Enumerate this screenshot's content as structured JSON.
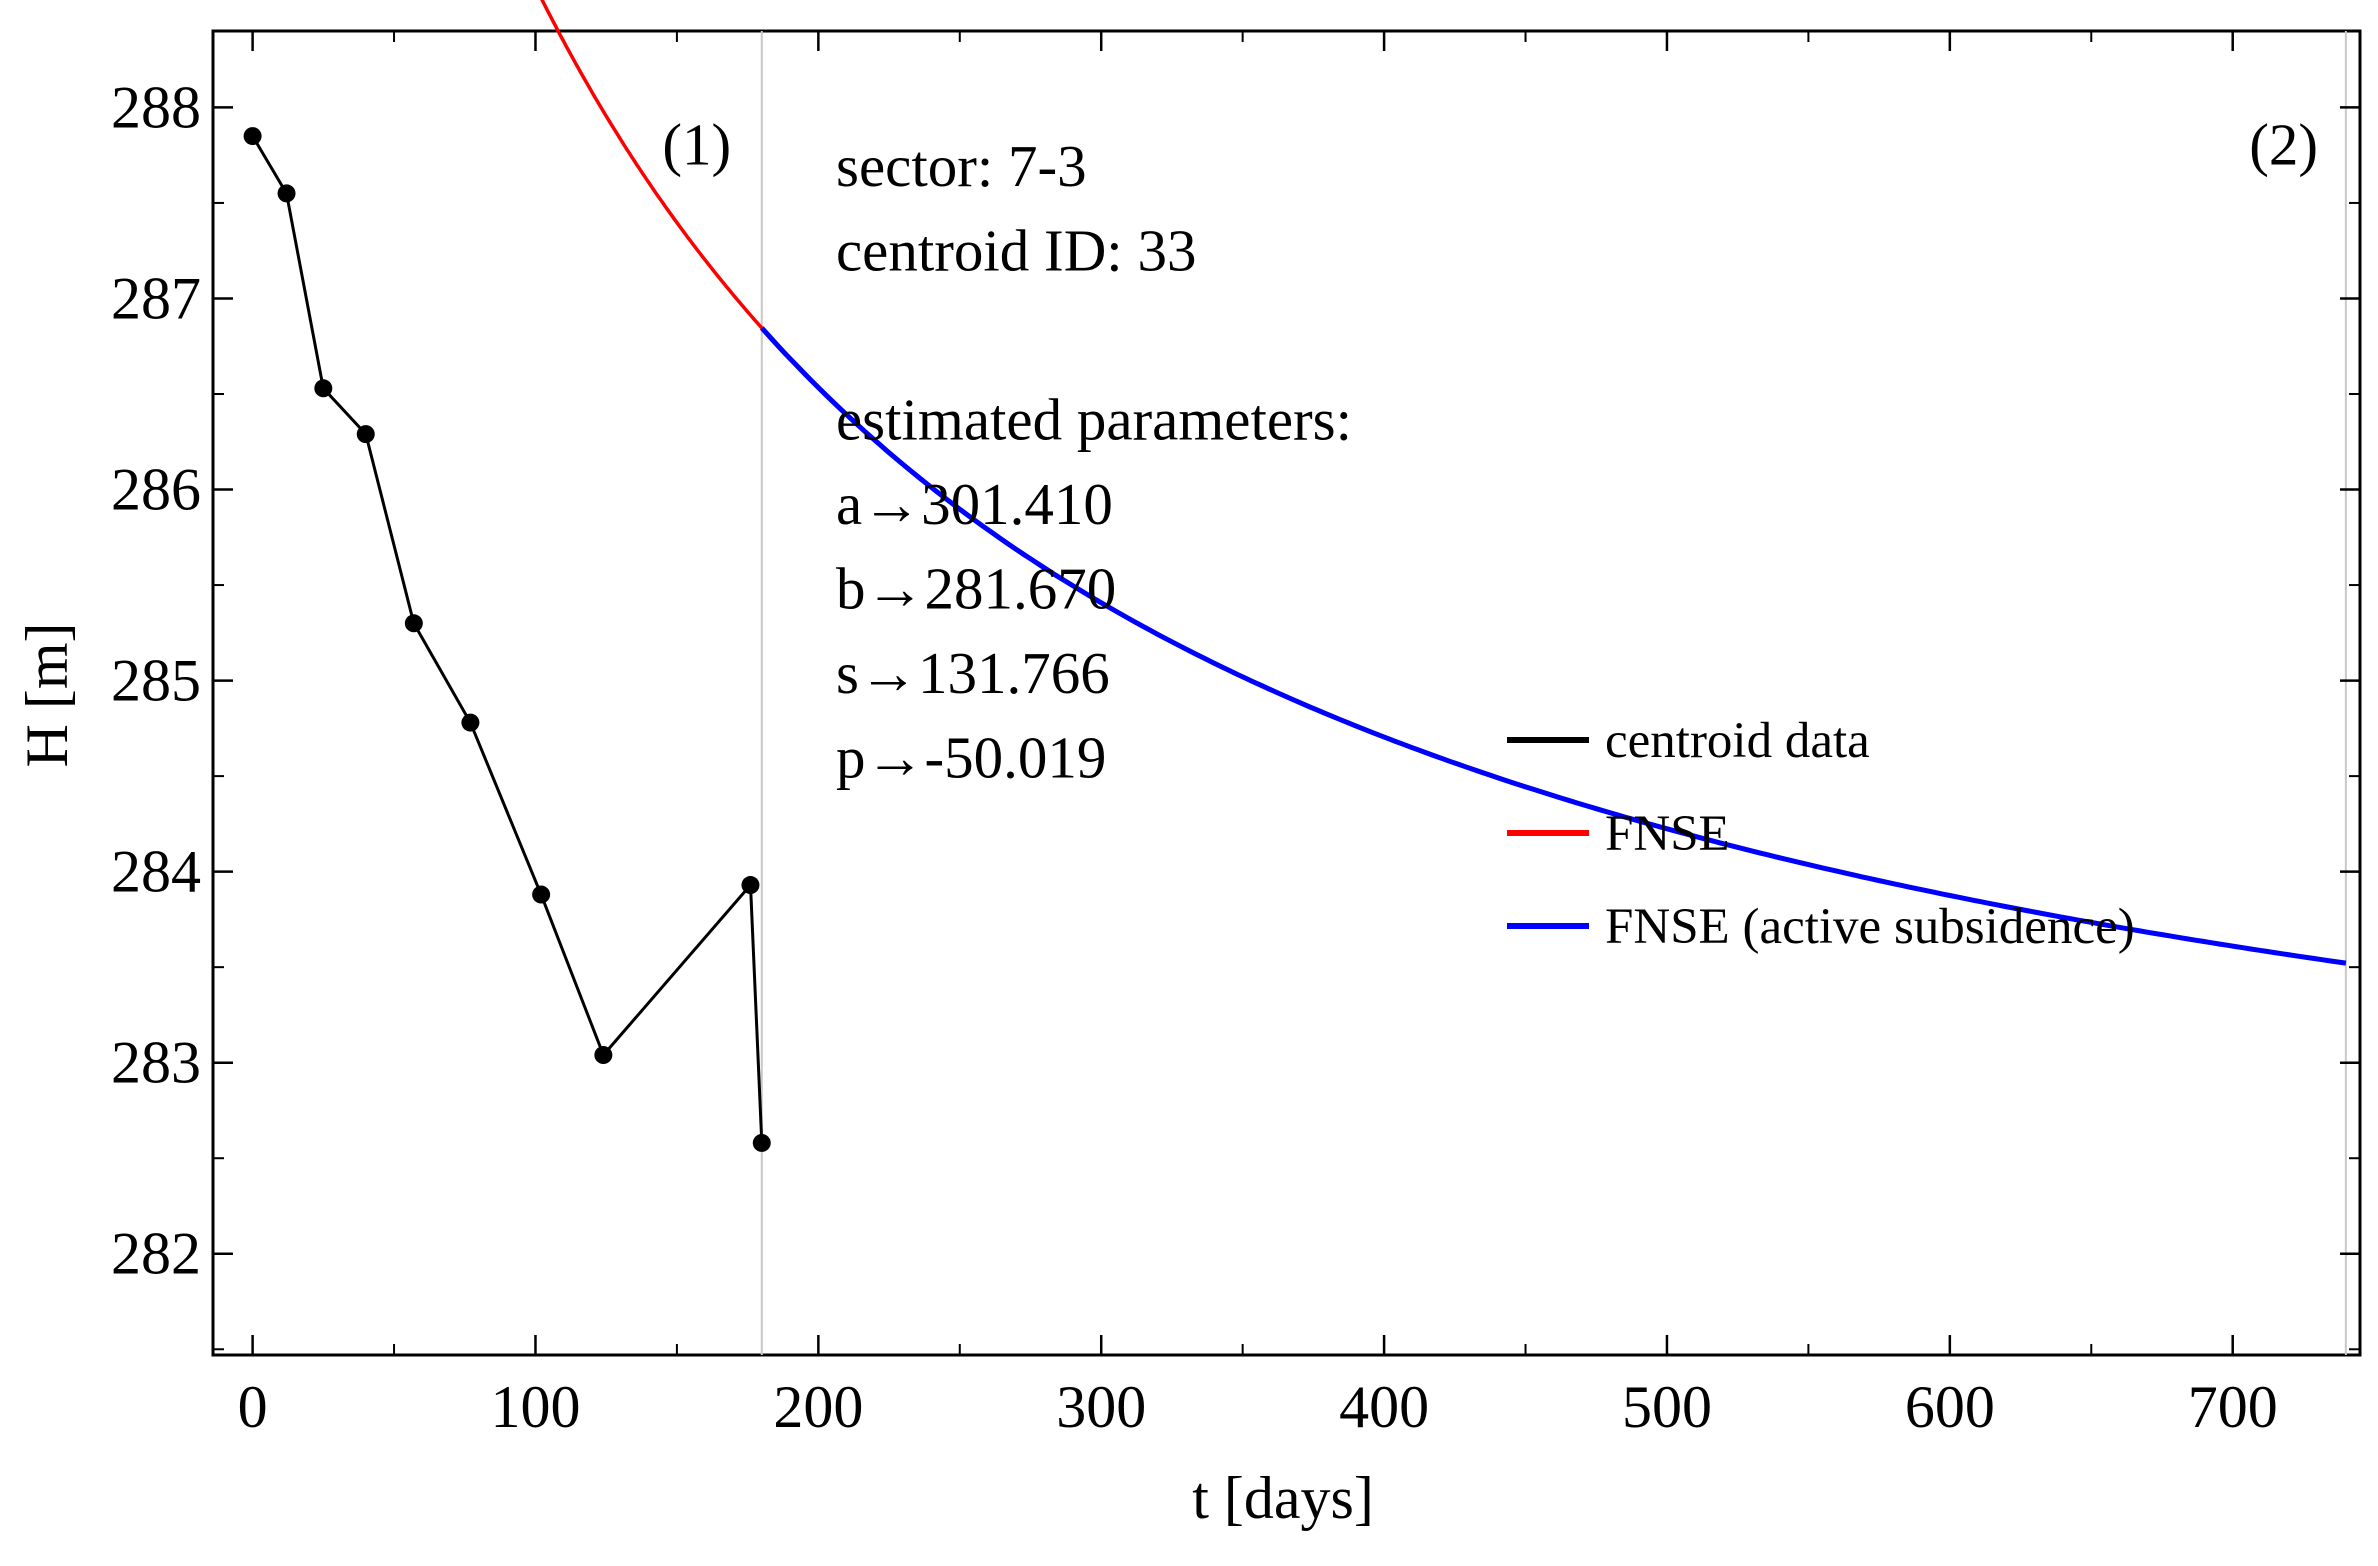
{
  "chart_data": {
    "type": "line",
    "xlabel": "t [days]",
    "ylabel": "H [m]",
    "xlim": [
      -14,
      745
    ],
    "ylim": [
      281.47,
      288.4
    ],
    "xticks": [
      0,
      100,
      200,
      300,
      400,
      500,
      600,
      700
    ],
    "yticks": [
      282,
      283,
      284,
      285,
      286,
      287,
      288
    ],
    "grid": false,
    "vlines": [
      180,
      740
    ],
    "region_labels": [
      {
        "text": "(1)",
        "x": 157,
        "y": 287.7
      },
      {
        "text": "(2)",
        "x": 718,
        "y": 287.7
      }
    ],
    "annotation_lines": [
      "sector: 7-3",
      "centroid ID: 33",
      "",
      "estimated parameters:",
      "a→301.410",
      "b→281.670",
      "s→131.766",
      "p→-50.019"
    ],
    "legend_position": "center-right",
    "series": [
      {
        "name": "centroid data",
        "color": "#000000",
        "x": [
          0,
          12,
          25,
          40,
          57,
          77,
          102,
          124,
          176,
          180
        ],
        "y": [
          287.85,
          287.55,
          286.53,
          286.29,
          285.3,
          284.78,
          283.88,
          283.04,
          283.93,
          282.58
        ]
      },
      {
        "name": "FNSE",
        "color": "#ff0000",
        "model": {
          "a": 301.41,
          "b": 281.67,
          "s": 131.766,
          "p": -50.019
        },
        "domain": [
          0,
          180
        ]
      },
      {
        "name": "FNSE (active subsidence)",
        "color": "#0000ff",
        "model": {
          "a": 301.41,
          "b": 281.67,
          "s": 131.766,
          "p": -50.019
        },
        "domain": [
          180,
          740
        ]
      }
    ]
  }
}
